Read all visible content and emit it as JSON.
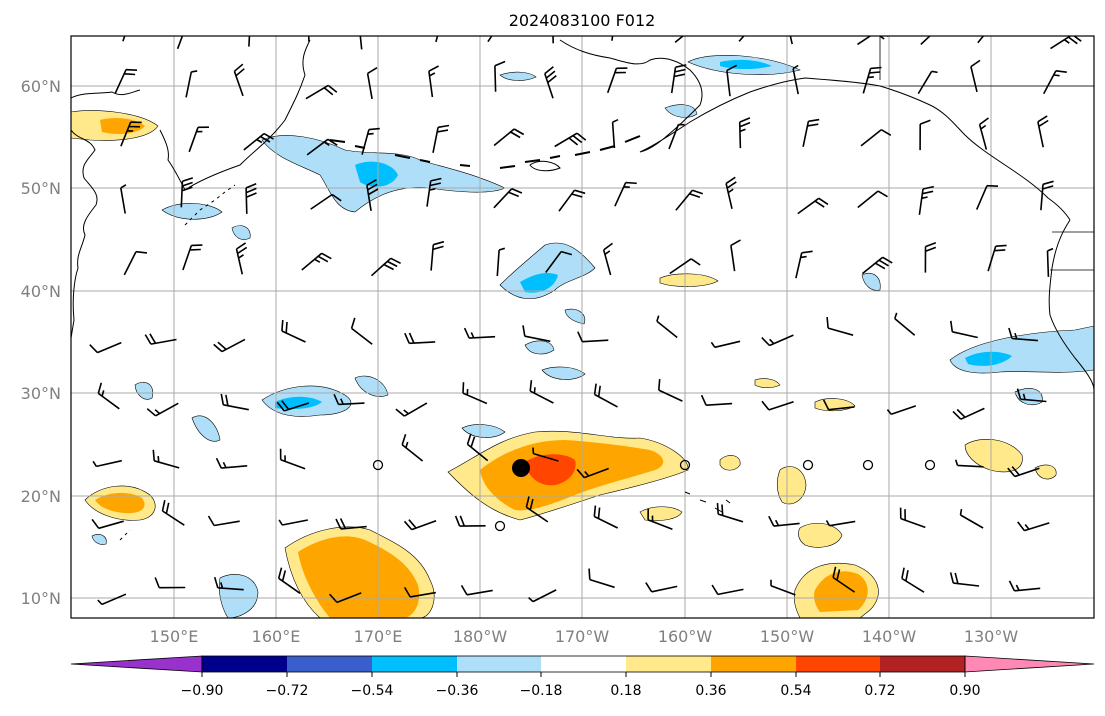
{
  "title": "2024083100 F012",
  "map": {
    "lat_labels": [
      "60°N",
      "50°N",
      "40°N",
      "30°N",
      "20°N",
      "10°N"
    ],
    "lon_labels": [
      "150°E",
      "160°E",
      "170°E",
      "180°W",
      "170°W",
      "160°W",
      "150°W",
      "140°W",
      "130°W"
    ],
    "grid": true,
    "label_color": "#808080"
  },
  "colorbar": {
    "tick_labels": [
      "−0.90",
      "−0.72",
      "−0.54",
      "−0.36",
      "−0.18",
      "0.18",
      "0.36",
      "0.54",
      "0.72",
      "0.90"
    ],
    "colors": [
      "#9932cc",
      "#00008b",
      "#3a5fcd",
      "#00bfff",
      "#afdff8",
      "#ffffff",
      "#ffe98a",
      "#ffa500",
      "#ff4500",
      "#b22222",
      "#ff88b5"
    ],
    "extend": "both"
  },
  "markers": {
    "large_dot_color": "#000000",
    "calm_circle_color": "#000000"
  }
}
